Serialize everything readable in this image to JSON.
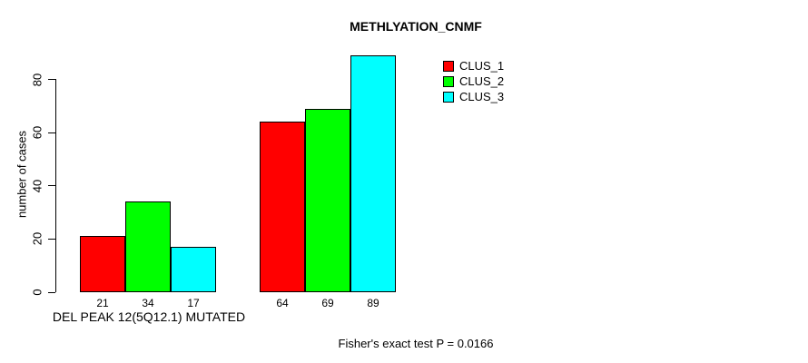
{
  "chart_data": {
    "type": "bar",
    "title": "METHLYATION_CNMF",
    "ylabel": "number of cases",
    "xlabel": "DEL PEAK 12(5Q12.1) MUTATED",
    "footnote": "Fisher's exact test P = 0.0166",
    "ylim": [
      0,
      89
    ],
    "yticks": [
      "0",
      "20",
      "40",
      "60",
      "80"
    ],
    "ytick_values": [
      0,
      20,
      40,
      60,
      80
    ],
    "grid": false,
    "legend_position": "top-right",
    "background_color": "#FFFFFF",
    "bar_border_color": "#000000",
    "groups": [
      {
        "name": "group-1",
        "values": [
          21,
          34,
          17
        ],
        "labels": [
          "21",
          "34",
          "17"
        ]
      },
      {
        "name": "group-2",
        "values": [
          64,
          69,
          89
        ],
        "labels": [
          "64",
          "69",
          "89"
        ]
      }
    ],
    "series": [
      {
        "name": "CLUS_1",
        "color": "#FF0000"
      },
      {
        "name": "CLUS_2",
        "color": "#00FF00"
      },
      {
        "name": "CLUS_3",
        "color": "#00FFFF"
      }
    ]
  }
}
